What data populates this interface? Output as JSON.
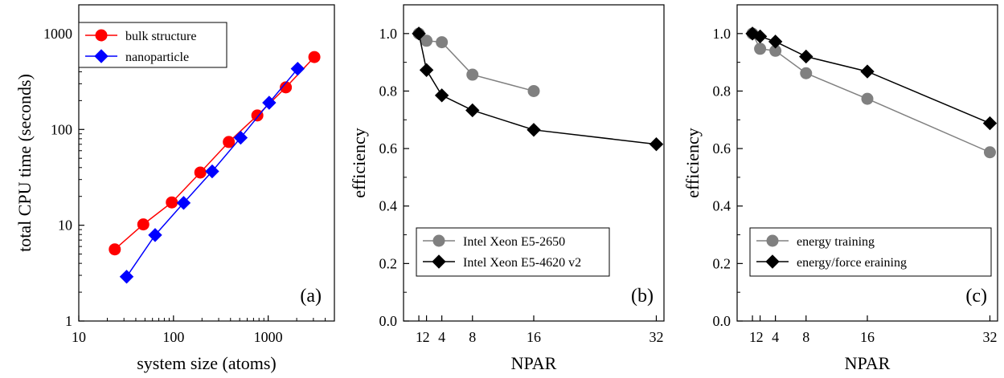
{
  "chart_data": [
    {
      "id": "a",
      "type": "line",
      "panel_label": "(a)",
      "xlabel": "system size (atoms)",
      "ylabel": "total CPU time (seconds)",
      "xscale": "log",
      "yscale": "log",
      "xlim": [
        10,
        5000
      ],
      "ylim": [
        1,
        2000
      ],
      "xticks": [
        10,
        100,
        1000
      ],
      "yticks": [
        1,
        10,
        100,
        1000
      ],
      "xtick_labels": [
        "10",
        "100",
        "1000"
      ],
      "ytick_labels": [
        "1",
        "10",
        "100",
        "1000"
      ],
      "legend_position": "top-left",
      "series": [
        {
          "name": "bulk structure",
          "color": "#ff0000",
          "marker": "circle",
          "x": [
            24,
            48,
            96,
            192,
            384,
            768,
            1536,
            3072
          ],
          "y": [
            5.6,
            10.2,
            17.3,
            35.5,
            74,
            140,
            275,
            570
          ]
        },
        {
          "name": "nanoparticle",
          "color": "#0000ff",
          "marker": "diamond",
          "x": [
            32,
            64,
            128,
            256,
            512,
            1024,
            2048
          ],
          "y": [
            2.9,
            7.9,
            17.1,
            36.5,
            82,
            190,
            430
          ]
        }
      ]
    },
    {
      "id": "b",
      "type": "line",
      "panel_label": "(b)",
      "xlabel": "NPAR",
      "ylabel": "efficiency",
      "xlim": [
        -1,
        33
      ],
      "ylim": [
        0,
        1.1
      ],
      "xticks": [
        1,
        2,
        4,
        8,
        16,
        32
      ],
      "yticks": [
        0,
        0.2,
        0.4,
        0.6,
        0.8,
        1.0
      ],
      "xtick_labels": [
        "1",
        "2",
        "4",
        "8",
        "16",
        "32"
      ],
      "ytick_labels": [
        "0.0",
        "0.2",
        "0.4",
        "0.6",
        "0.8",
        "1.0"
      ],
      "legend_position": "bottom-left",
      "series": [
        {
          "name": "Intel Xeon E5-2650",
          "color": "#808080",
          "marker": "circle",
          "x": [
            1,
            2,
            4,
            8,
            16
          ],
          "y": [
            1.0,
            0.975,
            0.97,
            0.857,
            0.8
          ]
        },
        {
          "name": "Intel Xeon E5-4620 v2",
          "color": "#000000",
          "marker": "diamond",
          "x": [
            1,
            2,
            4,
            8,
            16,
            32
          ],
          "y": [
            1.0,
            0.873,
            0.785,
            0.733,
            0.665,
            0.615
          ]
        }
      ]
    },
    {
      "id": "c",
      "type": "line",
      "panel_label": "(c)",
      "xlabel": "NPAR",
      "ylabel": "efficiency",
      "xlim": [
        -1,
        33
      ],
      "ylim": [
        0,
        1.1
      ],
      "xticks": [
        1,
        2,
        4,
        8,
        16,
        32
      ],
      "yticks": [
        0,
        0.2,
        0.4,
        0.6,
        0.8,
        1.0
      ],
      "xtick_labels": [
        "1",
        "2",
        "4",
        "8",
        "16",
        "32"
      ],
      "ytick_labels": [
        "0.0",
        "0.2",
        "0.4",
        "0.6",
        "0.8",
        "1.0"
      ],
      "legend_position": "bottom-left",
      "series": [
        {
          "name": "energy training",
          "color": "#808080",
          "marker": "circle",
          "x": [
            1,
            2,
            4,
            8,
            16,
            32
          ],
          "y": [
            1.0,
            0.947,
            0.94,
            0.862,
            0.773,
            0.587
          ]
        },
        {
          "name": "energy/force eraining",
          "color": "#000000",
          "marker": "diamond",
          "x": [
            1,
            2,
            4,
            8,
            16,
            32
          ],
          "y": [
            1.0,
            0.99,
            0.972,
            0.92,
            0.868,
            0.688
          ]
        }
      ]
    }
  ]
}
